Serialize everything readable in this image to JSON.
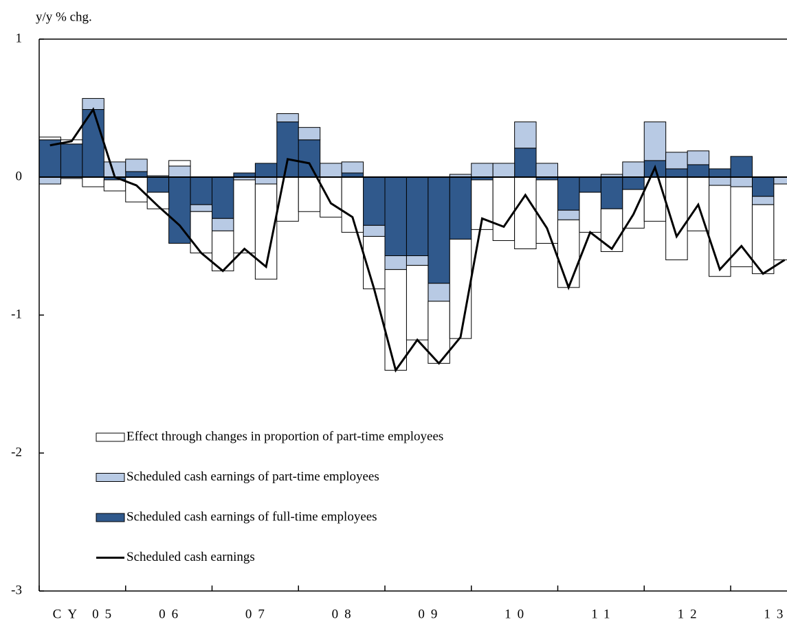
{
  "chart_data": {
    "type": "stacked-bar-line",
    "y_label": "y/y % chg.",
    "categories": [
      "CY 05",
      null,
      null,
      null,
      "06",
      null,
      null,
      null,
      "07",
      null,
      null,
      null,
      "08",
      null,
      null,
      null,
      "09",
      null,
      null,
      null,
      "10",
      null,
      null,
      null,
      "11",
      null,
      null,
      null,
      "12",
      null,
      null,
      null,
      "13",
      null,
      null
    ],
    "series": [
      {
        "name": "Scheduled cash earnings of full-time employees",
        "color": "#30598c",
        "kind": "bar",
        "values": [
          0.27,
          0.24,
          0.49,
          -0.02,
          0.04,
          -0.11,
          -0.48,
          -0.2,
          -0.3,
          0.03,
          0.1,
          0.4,
          0.27,
          0.0,
          0.03,
          -0.35,
          -0.57,
          -0.57,
          -0.77,
          -0.45,
          -0.02,
          0.0,
          0.21,
          -0.02,
          -0.24,
          -0.11,
          -0.23,
          -0.09,
          0.12,
          0.06,
          0.09,
          0.06,
          0.15,
          -0.14,
          0.0
        ]
      },
      {
        "name": "Scheduled cash earnings of part-time employees",
        "color": "#b8cae4",
        "kind": "bar",
        "values": [
          -0.05,
          -0.01,
          0.08,
          0.11,
          0.09,
          0.01,
          0.08,
          -0.05,
          -0.09,
          -0.02,
          -0.05,
          0.06,
          0.09,
          0.1,
          0.08,
          -0.08,
          -0.1,
          -0.07,
          -0.13,
          0.02,
          0.1,
          0.1,
          0.19,
          0.1,
          -0.07,
          0.0,
          0.02,
          0.11,
          0.28,
          0.12,
          0.1,
          -0.06,
          -0.07,
          -0.06,
          -0.05
        ]
      },
      {
        "name": "Effect through changes in proportion of part-time employees",
        "color": "#ffffff",
        "kind": "bar",
        "values": [
          0.02,
          0.03,
          -0.07,
          -0.08,
          -0.18,
          -0.12,
          0.04,
          -0.3,
          -0.29,
          -0.53,
          -0.69,
          -0.32,
          -0.25,
          -0.29,
          -0.4,
          -0.38,
          -0.73,
          -0.54,
          -0.45,
          -0.72,
          -0.36,
          -0.46,
          -0.52,
          -0.46,
          -0.49,
          -0.29,
          -0.31,
          -0.28,
          -0.32,
          -0.6,
          -0.39,
          -0.66,
          -0.58,
          -0.5,
          -0.55
        ]
      },
      {
        "name": "Scheduled cash earnings",
        "color": "#000000",
        "kind": "line",
        "values": [
          0.23,
          0.26,
          0.49,
          0.0,
          -0.06,
          -0.21,
          -0.35,
          -0.55,
          -0.68,
          -0.52,
          -0.65,
          0.13,
          0.1,
          -0.19,
          -0.29,
          -0.81,
          -1.4,
          -1.18,
          -1.35,
          -1.16,
          -0.3,
          -0.36,
          -0.13,
          -0.37,
          -0.8,
          -0.4,
          -0.52,
          -0.27,
          0.07,
          -0.43,
          -0.2,
          -0.67,
          -0.5,
          -0.7,
          -0.6
        ]
      }
    ],
    "legend_order": [
      2,
      1,
      0,
      3
    ],
    "ylim": [
      -3,
      1
    ],
    "yticks": [
      -3,
      -2,
      -1,
      0,
      1
    ],
    "grid": false
  }
}
